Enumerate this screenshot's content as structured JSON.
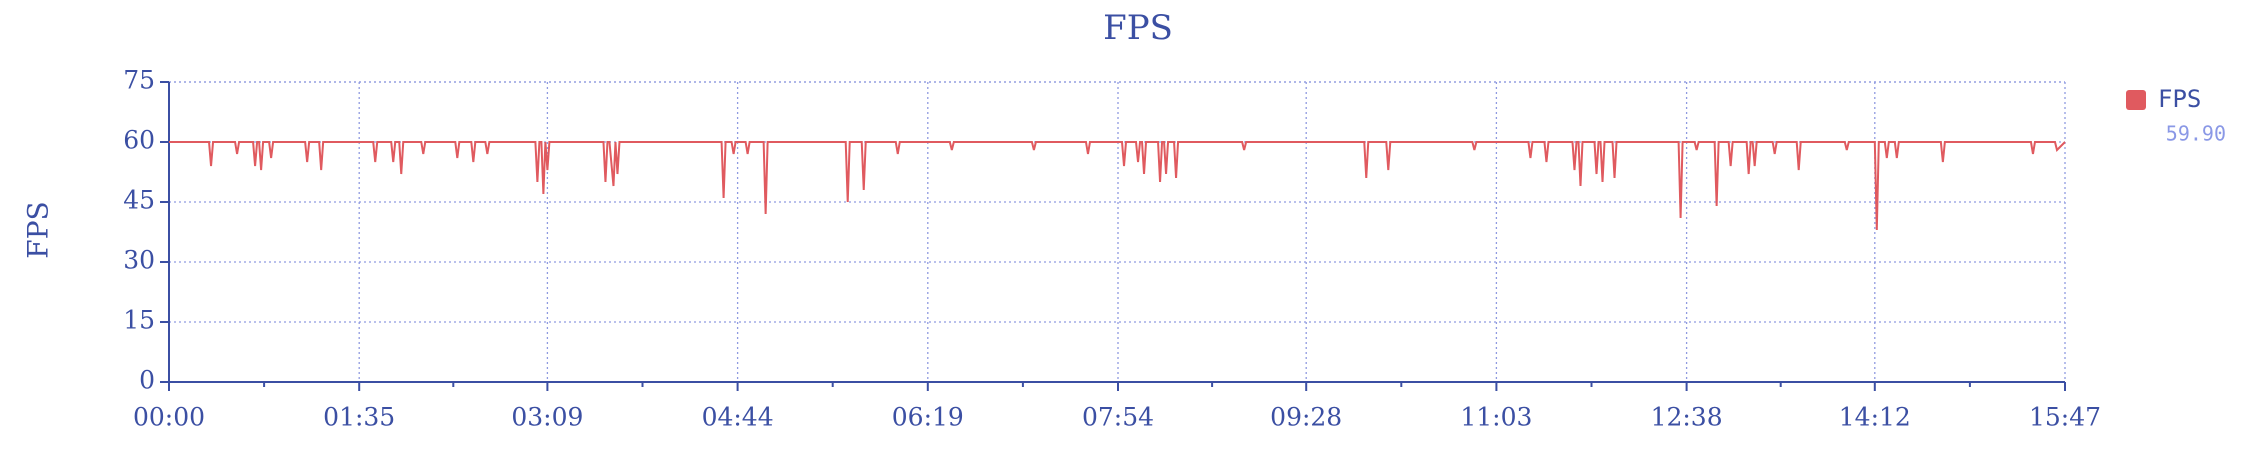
{
  "chart_data": {
    "type": "line",
    "title": "FPS",
    "y_label": "FPS",
    "xlim": [
      0,
      947
    ],
    "ylim": [
      0,
      75
    ],
    "xticks": [
      {
        "value": 0,
        "label": "00:00"
      },
      {
        "value": 95,
        "label": "01:35"
      },
      {
        "value": 189,
        "label": "03:09"
      },
      {
        "value": 284,
        "label": "04:44"
      },
      {
        "value": 379,
        "label": "06:19"
      },
      {
        "value": 474,
        "label": "07:54"
      },
      {
        "value": 568,
        "label": "09:28"
      },
      {
        "value": 663,
        "label": "11:03"
      },
      {
        "value": 758,
        "label": "12:38"
      },
      {
        "value": 852,
        "label": "14:12"
      },
      {
        "value": 947,
        "label": "15:47"
      }
    ],
    "yticks": [
      0,
      15,
      30,
      45,
      60,
      75
    ],
    "grid": true,
    "legend": "right",
    "series": [
      {
        "name": "FPS",
        "color": "#e05a5f",
        "current_value": "59.90",
        "x": [
          0,
          20,
          21,
          22,
          33,
          34,
          35,
          42,
          43,
          44,
          45,
          46,
          47,
          50,
          51,
          52,
          68,
          69,
          70,
          75,
          76,
          77,
          102,
          103,
          104,
          111,
          112,
          113,
          115,
          116,
          117,
          126,
          127,
          128,
          143,
          144,
          145,
          151,
          152,
          153,
          158,
          159,
          160,
          183,
          184,
          185,
          186,
          187,
          188,
          189,
          190,
          217,
          218,
          219,
          220,
          222,
          223,
          224,
          225,
          276,
          277,
          278,
          281,
          282,
          283,
          288,
          289,
          290,
          297,
          298,
          299,
          338,
          339,
          340,
          346,
          347,
          348,
          363,
          364,
          365,
          390,
          391,
          392,
          431,
          432,
          433,
          458,
          459,
          460,
          476,
          477,
          478,
          483,
          484,
          485,
          486,
          487,
          488,
          494,
          495,
          496,
          497,
          498,
          499,
          502,
          503,
          504,
          536,
          537,
          538,
          597,
          598,
          599,
          608,
          609,
          610,
          651,
          652,
          653,
          679,
          680,
          681,
          687,
          688,
          689,
          701,
          702,
          703,
          704,
          705,
          706,
          712,
          713,
          714,
          715,
          716,
          717,
          721,
          722,
          723,
          754,
          755,
          756,
          762,
          763,
          764,
          772,
          773,
          774,
          779,
          780,
          781,
          788,
          789,
          790,
          791,
          792,
          793,
          801,
          802,
          803,
          813,
          814,
          815,
          837,
          838,
          839,
          852,
          853,
          854,
          857,
          858,
          859,
          862,
          863,
          864,
          885,
          886,
          887,
          930,
          931,
          932,
          942,
          943,
          947
        ],
        "values": [
          60,
          60,
          54,
          60,
          60,
          57,
          60,
          60,
          54,
          60,
          60,
          53,
          60,
          60,
          56,
          60,
          60,
          55,
          60,
          60,
          53,
          60,
          60,
          55,
          60,
          60,
          55,
          60,
          60,
          52,
          60,
          60,
          57,
          60,
          60,
          56,
          60,
          60,
          55,
          60,
          60,
          57,
          60,
          60,
          50,
          60,
          60,
          47,
          60,
          53,
          60,
          60,
          50,
          60,
          60,
          49,
          60,
          52,
          60,
          60,
          46,
          60,
          60,
          57,
          60,
          60,
          57,
          60,
          60,
          42,
          60,
          60,
          45,
          60,
          60,
          48,
          60,
          60,
          57,
          60,
          60,
          58,
          60,
          60,
          58,
          60,
          60,
          57,
          60,
          60,
          54,
          60,
          60,
          55,
          60,
          60,
          52,
          60,
          60,
          50,
          60,
          60,
          52,
          60,
          60,
          51,
          60,
          60,
          58,
          60,
          60,
          51,
          60,
          60,
          53,
          60,
          60,
          58,
          60,
          60,
          56,
          60,
          60,
          55,
          60,
          60,
          53,
          60,
          60,
          49,
          60,
          60,
          52,
          60,
          60,
          50,
          60,
          60,
          51,
          60,
          60,
          41,
          60,
          60,
          58,
          60,
          60,
          44,
          60,
          60,
          54,
          60,
          60,
          52,
          60,
          60,
          54,
          60,
          60,
          57,
          60,
          60,
          53,
          60,
          60,
          58,
          60,
          60,
          38,
          60,
          60,
          56,
          60,
          60,
          56,
          60,
          60,
          55,
          60,
          60,
          57,
          60,
          60,
          58,
          60
        ]
      }
    ]
  }
}
